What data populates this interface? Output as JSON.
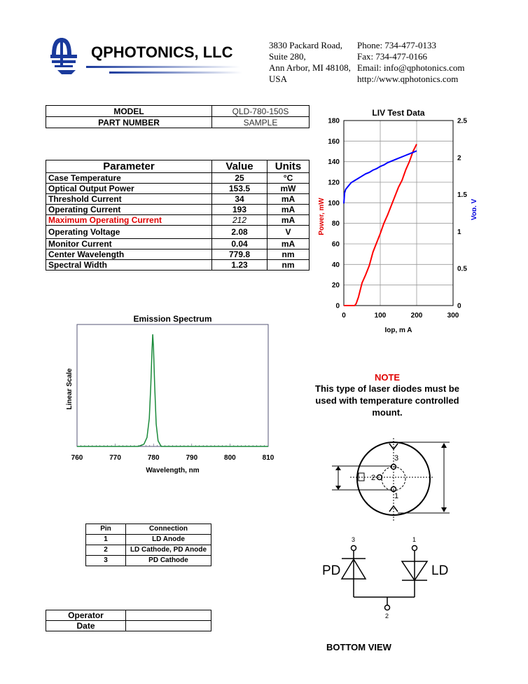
{
  "company": {
    "name": "QPHOTONICS, LLC",
    "address": [
      "3830 Packard Road,",
      "Suite 280,",
      "Ann Arbor, MI 48108,",
      "USA"
    ],
    "contact": [
      "Phone: 734-477-0133",
      "Fax: 734-477-0166",
      "Email: info@qphotonics.com",
      "http://www.qphotonics.com"
    ],
    "logo_color": "#1a3a9c"
  },
  "model_table": [
    {
      "label": "MODEL",
      "value": "QLD-780-150S"
    },
    {
      "label": "PART NUMBER",
      "value": "SAMPLE"
    }
  ],
  "params": {
    "headers": [
      "Parameter",
      "Value",
      "Units"
    ],
    "rows": [
      {
        "name": "Case Temperature",
        "value": "25",
        "unit": "°C"
      },
      {
        "name": "Optical Output Power",
        "value": "153.5",
        "unit": "mW"
      },
      {
        "name": "Threshold Current",
        "value": "34",
        "unit": "mA"
      },
      {
        "name": "Operating Current",
        "value": "193",
        "unit": "mA"
      },
      {
        "name": "Maximum Operating Current",
        "value": "212",
        "unit": "mA",
        "highlight": "#e00000"
      },
      {
        "name": "Operating Voltage",
        "value": "2.08",
        "unit": "V"
      },
      {
        "name": "Monitor Current",
        "value": "0.04",
        "unit": "mA"
      },
      {
        "name": "Center Wavelength",
        "value": "779.8",
        "unit": "nm"
      },
      {
        "name": "Spectral Width",
        "value": "1.23",
        "unit": "nm"
      }
    ]
  },
  "note": {
    "title": "NOTE",
    "text": "This type of laser diodes must be used with temperature controlled mount."
  },
  "pins": {
    "headers": [
      "Pin",
      "Connection"
    ],
    "rows": [
      [
        "1",
        "LD Anode"
      ],
      [
        "2",
        "LD Cathode, PD Anode"
      ],
      [
        "3",
        "PD Cathode"
      ]
    ]
  },
  "signoff": [
    {
      "label": "Operator",
      "value": ""
    },
    {
      "label": "Date",
      "value": ""
    }
  ],
  "diagram": {
    "pin_labels": [
      "1",
      "2",
      "3"
    ],
    "pd_label": "PD",
    "ld_label": "LD",
    "caption": "BOTTOM VIEW"
  },
  "chart_data": [
    {
      "type": "line",
      "title": "LIV Test Data",
      "xlabel": "Iop, m A",
      "ylabel": "Power, mW",
      "y2label": "Vop, V",
      "xlim": [
        0,
        300
      ],
      "ylim": [
        0,
        180
      ],
      "y2lim": [
        0,
        2.5
      ],
      "xticks": [
        0,
        100,
        200,
        300
      ],
      "yticks": [
        0,
        20,
        40,
        60,
        80,
        100,
        120,
        140,
        160,
        180
      ],
      "y2ticks": [
        0,
        0.5,
        1,
        1.5,
        2,
        2.5
      ],
      "grid": true,
      "series": [
        {
          "color": "#ff0000",
          "axis": "left",
          "x": [
            0,
            30,
            34,
            40,
            50,
            60,
            70,
            80,
            90,
            100,
            110,
            120,
            130,
            140,
            150,
            160,
            170,
            180,
            190,
            200
          ],
          "y": [
            0,
            0,
            2,
            8,
            22,
            30,
            39,
            52,
            61,
            70,
            80,
            88,
            97,
            106,
            115,
            122,
            132,
            140,
            150,
            157
          ]
        },
        {
          "color": "#0000ff",
          "axis": "right",
          "x": [
            0,
            2,
            5,
            10,
            20,
            30,
            40,
            50,
            60,
            70,
            80,
            90,
            100,
            110,
            120,
            130,
            140,
            150,
            160,
            170,
            180,
            190,
            200
          ],
          "y": [
            1.38,
            1.52,
            1.57,
            1.6,
            1.66,
            1.69,
            1.72,
            1.75,
            1.78,
            1.8,
            1.83,
            1.85,
            1.88,
            1.9,
            1.93,
            1.95,
            1.97,
            1.99,
            2.01,
            2.03,
            2.05,
            2.07,
            2.09
          ]
        }
      ]
    },
    {
      "type": "line",
      "title": "Emission Spectrum",
      "xlabel": "Wavelength, nm",
      "ylabel": "Linear Scale",
      "xlim": [
        760,
        810
      ],
      "xticks": [
        760,
        770,
        780,
        790,
        800,
        810
      ],
      "grid": false,
      "series": [
        {
          "color": "#1a8a3a",
          "x": [
            760,
            776,
            777.5,
            778.3,
            778.9,
            779.3,
            779.6,
            779.8,
            780.0,
            780.3,
            780.7,
            781.2,
            782,
            810
          ],
          "y": [
            0,
            0,
            0.02,
            0.08,
            0.25,
            0.55,
            0.85,
            1.0,
            0.88,
            0.55,
            0.2,
            0.05,
            0,
            0
          ]
        }
      ]
    }
  ]
}
